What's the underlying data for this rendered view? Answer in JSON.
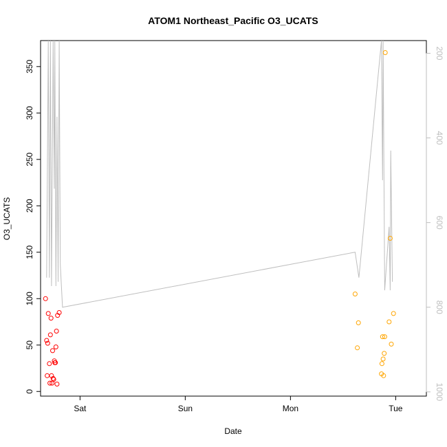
{
  "chart_data": {
    "type": "scatter",
    "title": "ATOM1 Northeast_Pacific O3_UCATS",
    "xlabel": "Date",
    "ylabel": "O3_UCATS",
    "x_axis_type": "date",
    "x_ticks": [
      {
        "date": "2016-07-30",
        "label": "Sat"
      },
      {
        "date": "2016-07-31",
        "label": "Sun"
      },
      {
        "date": "2016-08-01",
        "label": "Mon"
      },
      {
        "date": "2016-08-02",
        "label": "Tue"
      }
    ],
    "xlim": [
      "2016-07-29 15:00",
      "2016-08-02 07:00"
    ],
    "ylim": [
      -5,
      378
    ],
    "y_ticks": [
      0,
      50,
      100,
      150,
      200,
      250,
      300,
      350
    ],
    "y2_ticks": [
      200,
      400,
      600,
      800,
      1000
    ],
    "y2lim": [
      1010,
      170
    ],
    "y2_color": "#bebebe",
    "series": [
      {
        "color": "#ff0000",
        "marker": "open-circle",
        "points": [
          {
            "x": "2016-07-29 16:08",
            "y": 100
          },
          {
            "x": "2016-07-29 16:23",
            "y": 55
          },
          {
            "x": "2016-07-29 16:30",
            "y": 17
          },
          {
            "x": "2016-07-29 16:37",
            "y": 52
          },
          {
            "x": "2016-07-29 16:45",
            "y": 84
          },
          {
            "x": "2016-07-29 17:00",
            "y": 30
          },
          {
            "x": "2016-07-29 17:08",
            "y": 9
          },
          {
            "x": "2016-07-29 17:15",
            "y": 61
          },
          {
            "x": "2016-07-29 17:23",
            "y": 79
          },
          {
            "x": "2016-07-29 17:30",
            "y": 17
          },
          {
            "x": "2016-07-29 17:37",
            "y": 9
          },
          {
            "x": "2016-07-29 17:45",
            "y": 44
          },
          {
            "x": "2016-07-29 17:52",
            "y": 14
          },
          {
            "x": "2016-07-29 18:00",
            "y": 13
          },
          {
            "x": "2016-07-29 18:08",
            "y": 33
          },
          {
            "x": "2016-07-29 18:15",
            "y": 31
          },
          {
            "x": "2016-07-29 18:23",
            "y": 31
          },
          {
            "x": "2016-07-29 18:30",
            "y": 48
          },
          {
            "x": "2016-07-29 18:37",
            "y": 65
          },
          {
            "x": "2016-07-29 18:45",
            "y": 8
          },
          {
            "x": "2016-07-29 18:52",
            "y": 82
          },
          {
            "x": "2016-07-29 19:15",
            "y": 85
          }
        ]
      },
      {
        "color": "#ffa500",
        "marker": "open-circle",
        "points": [
          {
            "x": "2016-08-01 14:45",
            "y": 105
          },
          {
            "x": "2016-08-01 15:15",
            "y": 47
          },
          {
            "x": "2016-08-01 15:30",
            "y": 74
          },
          {
            "x": "2016-08-01 20:45",
            "y": 19
          },
          {
            "x": "2016-08-01 20:52",
            "y": 30
          },
          {
            "x": "2016-08-01 21:00",
            "y": 59
          },
          {
            "x": "2016-08-01 21:08",
            "y": 35
          },
          {
            "x": "2016-08-01 21:15",
            "y": 17
          },
          {
            "x": "2016-08-01 21:23",
            "y": 41
          },
          {
            "x": "2016-08-01 21:30",
            "y": 59
          },
          {
            "x": "2016-08-01 21:37",
            "y": 365
          },
          {
            "x": "2016-08-01 22:30",
            "y": 75
          },
          {
            "x": "2016-08-01 22:45",
            "y": 165
          },
          {
            "x": "2016-08-01 23:00",
            "y": 51
          },
          {
            "x": "2016-08-01 23:30",
            "y": 84
          }
        ]
      }
    ],
    "secondary_line": {
      "color": "#bebebe",
      "axis": "right",
      "points": [
        {
          "x": "2016-07-29 16:23",
          "y": 730
        },
        {
          "x": "2016-07-29 16:45",
          "y": 170
        },
        {
          "x": "2016-07-29 17:00",
          "y": 730
        },
        {
          "x": "2016-07-29 17:15",
          "y": 170
        },
        {
          "x": "2016-07-29 17:30",
          "y": 750
        },
        {
          "x": "2016-07-29 17:52",
          "y": 170
        },
        {
          "x": "2016-07-29 18:08",
          "y": 520
        },
        {
          "x": "2016-07-29 18:15",
          "y": 170
        },
        {
          "x": "2016-07-29 18:30",
          "y": 750
        },
        {
          "x": "2016-07-29 18:45",
          "y": 350
        },
        {
          "x": "2016-07-29 19:00",
          "y": 740
        },
        {
          "x": "2016-07-29 19:15",
          "y": 170
        },
        {
          "x": "2016-07-29 19:30",
          "y": 700
        },
        {
          "x": "2016-07-29 20:00",
          "y": 800
        },
        {
          "x": "2016-08-01 14:45",
          "y": 670
        },
        {
          "x": "2016-08-01 15:37",
          "y": 730
        },
        {
          "x": "2016-08-01 20:45",
          "y": 170
        },
        {
          "x": "2016-08-01 21:00",
          "y": 500
        },
        {
          "x": "2016-08-01 21:08",
          "y": 170
        },
        {
          "x": "2016-08-01 21:30",
          "y": 760
        },
        {
          "x": "2016-08-01 22:30",
          "y": 610
        },
        {
          "x": "2016-08-01 22:45",
          "y": 760
        },
        {
          "x": "2016-08-01 22:52",
          "y": 430
        },
        {
          "x": "2016-08-01 23:15",
          "y": 740
        }
      ]
    },
    "grid": false,
    "legend": "none"
  }
}
